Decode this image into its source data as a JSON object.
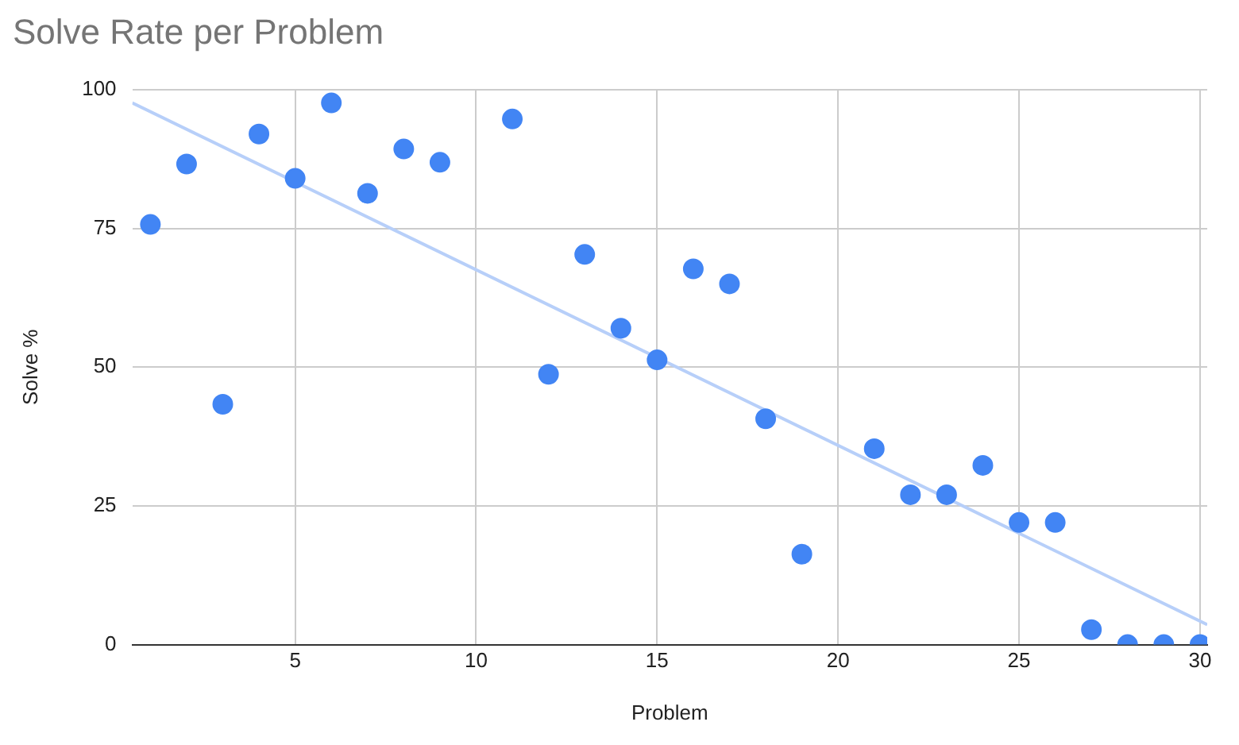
{
  "chart_data": {
    "type": "scatter",
    "title": "Solve Rate per Problem",
    "xlabel": "Problem",
    "ylabel": "Solve %",
    "xlim": [
      0.5,
      30.2
    ],
    "xticks": [
      5,
      10,
      15,
      20,
      25,
      30
    ],
    "ylim": [
      0,
      100
    ],
    "yticks": [
      0,
      25,
      50,
      75,
      100
    ],
    "grid": true,
    "legend": false,
    "series": [
      {
        "color": "#4285f4",
        "marker": "circle",
        "x": [
          1,
          2,
          3,
          4,
          5,
          6,
          7,
          8,
          9,
          11,
          12,
          13,
          14,
          15,
          16,
          17,
          18,
          19,
          21,
          22,
          23,
          24,
          25,
          26,
          27,
          28,
          29,
          30
        ],
        "values": [
          75.7,
          86.6,
          43.3,
          92,
          84,
          97.6,
          81.3,
          89.3,
          86.9,
          94.7,
          48.7,
          70.3,
          57,
          51.3,
          67.7,
          65,
          40.7,
          16.3,
          35.3,
          27,
          27,
          32.3,
          22,
          22,
          2.7,
          0,
          0,
          0
        ]
      },
      {
        "type": "line",
        "marker": "none",
        "color": "#b7cff9",
        "x": [
          0.5,
          30.2
        ],
        "values": [
          97.6,
          3.6
        ]
      }
    ]
  }
}
